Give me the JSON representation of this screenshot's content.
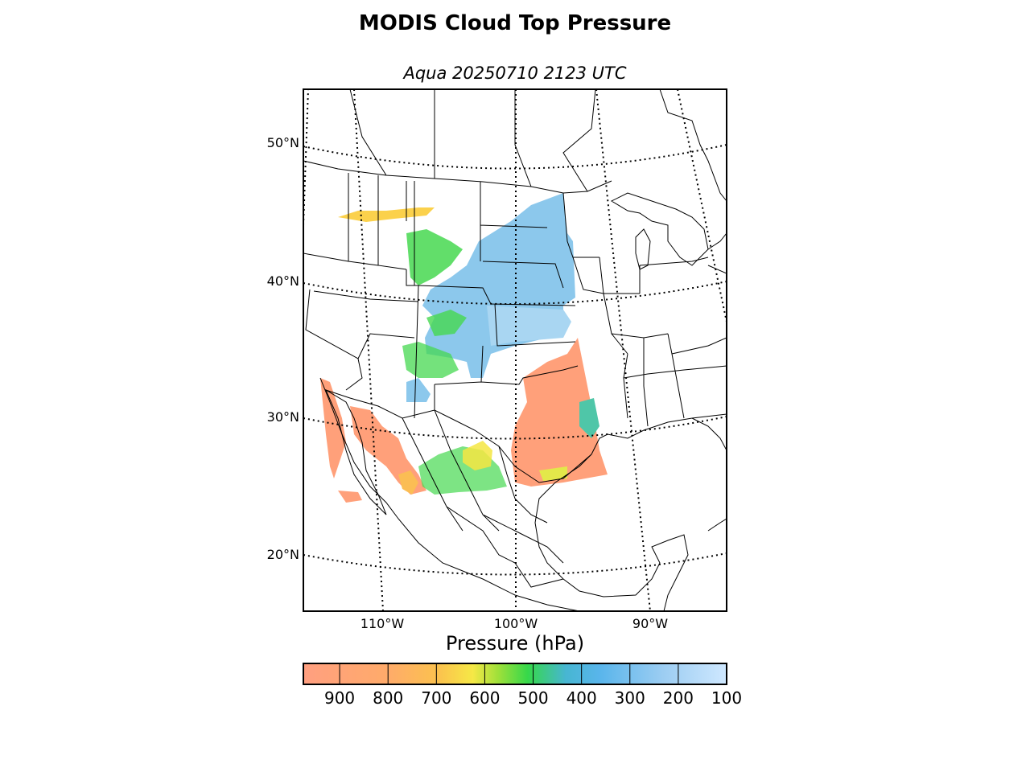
{
  "title": "MODIS Cloud Top Pressure",
  "subtitle": "Aqua 20250710 2123 UTC",
  "map": {
    "projection": "lambert-conformal",
    "lat_labels": [
      "50°N",
      "40°N",
      "30°N",
      "20°N"
    ],
    "lon_labels": [
      "110°W",
      "100°W",
      "90°W"
    ],
    "land_color": "#ffffff",
    "border_color": "#000000"
  },
  "colorbar": {
    "label": "Pressure (hPa)",
    "ticks": [
      "900",
      "800",
      "700",
      "600",
      "500",
      "400",
      "300",
      "200",
      "100"
    ],
    "range": [
      975,
      100
    ],
    "colors": {
      "low_clouds": "#ffa07a",
      "mid_low": "#ffb85a",
      "mid": "#f5e642",
      "mid_high": "#3cdc3c",
      "high": "#5ab4e6",
      "very_high": "#c8e6ff"
    }
  },
  "regions": [
    {
      "name": "high-cloud-plains",
      "level": "high",
      "color": "#8cc8ec"
    },
    {
      "name": "mid-cloud-rockies",
      "level": "mid_high",
      "color": "#3cdc3c"
    },
    {
      "name": "low-cloud-texas",
      "level": "low_clouds",
      "color": "#ffa07a"
    },
    {
      "name": "low-cloud-baja",
      "level": "low_clouds",
      "color": "#ffa07a"
    },
    {
      "name": "low-cloud-sierra-madre",
      "level": "low_clouds",
      "color": "#ffa07a"
    },
    {
      "name": "mid-cloud-mexico",
      "level": "mid",
      "color": "#f5e642"
    }
  ]
}
